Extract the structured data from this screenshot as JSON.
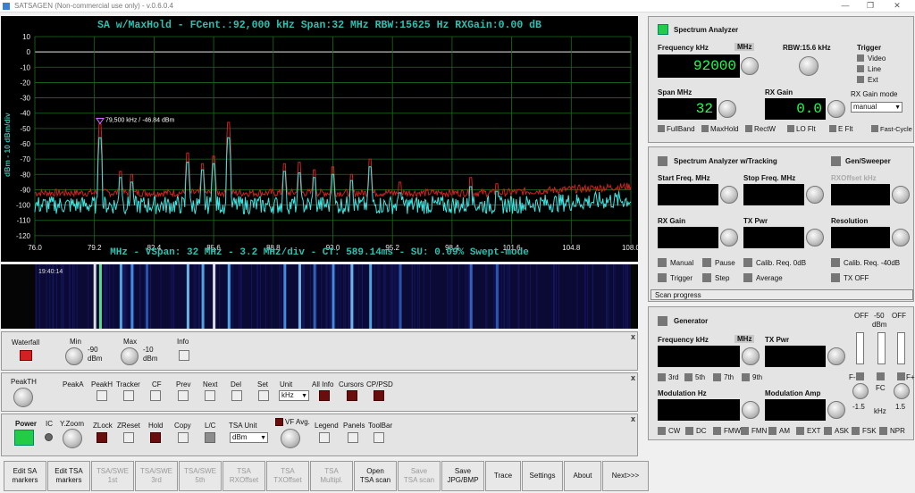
{
  "window": {
    "title": "SATSAGEN (Non-commercial use only) - v.0.6.0.4",
    "min": "—",
    "max": "❐",
    "close": "✕"
  },
  "spectrum": {
    "header": "SA w/MaxHold - FCent.:92,000 kHz Span:32 MHz RBW:15625 Hz RXGain:0.00 dB",
    "footer": "MHz - VSpan: 32 MHz - 3.2 MHz/div - CT: 589.14ms - SU: 0.09% Swept-mode",
    "ylabel": "dBm - 10 dBm/div",
    "marker": "79,500 kHz / -46.84 dBm",
    "colors": {
      "bg": "#000000",
      "grid": "#1d6b1d",
      "maxhold": "#cc2222",
      "trace": "#3ee6e0",
      "text": "#2fc0b0"
    }
  },
  "chart_data": {
    "type": "line",
    "xlabel": "MHz",
    "ylabel": "dBm - 10 dBm/div",
    "xlim": [
      76.0,
      108.0
    ],
    "ylim": [
      -130,
      10
    ],
    "x_ticks": [
      "76.0",
      "79.2",
      "82.4",
      "85.6",
      "88.8",
      "92.0",
      "95.2",
      "98.4",
      "101.6",
      "104.8",
      "108.0"
    ],
    "y_ticks": [
      "10",
      "0",
      "-10",
      "-20",
      "-30",
      "-40",
      "-50",
      "-60",
      "-70",
      "-80",
      "-90",
      "-100",
      "-110",
      "-120"
    ],
    "series": [
      {
        "name": "MaxHold",
        "noise_floor_dbm": -92,
        "peaks": [
          [
            79.5,
            -47
          ],
          [
            80.6,
            -78
          ],
          [
            81.2,
            -80
          ],
          [
            84.2,
            -66
          ],
          [
            85.0,
            -73
          ],
          [
            85.6,
            -68
          ],
          [
            86.4,
            -46
          ],
          [
            89.4,
            -73
          ],
          [
            90.2,
            -72
          ],
          [
            91.0,
            -77
          ],
          [
            92.0,
            -75
          ],
          [
            93.0,
            -80
          ],
          [
            94.0,
            -70
          ],
          [
            95.6,
            -85
          ],
          [
            99.4,
            -82
          ],
          [
            100.8,
            -86
          ]
        ]
      },
      {
        "name": "Trace",
        "noise_floor_dbm": -100,
        "peaks": [
          [
            79.5,
            -56
          ],
          [
            80.6,
            -82
          ],
          [
            81.2,
            -85
          ],
          [
            84.2,
            -72
          ],
          [
            85.0,
            -77
          ],
          [
            85.6,
            -73
          ],
          [
            86.4,
            -56
          ],
          [
            89.4,
            -78
          ],
          [
            90.2,
            -79
          ],
          [
            91.0,
            -82
          ],
          [
            92.0,
            -80
          ],
          [
            93.0,
            -84
          ],
          [
            94.0,
            -75
          ],
          [
            95.6,
            -92
          ],
          [
            99.4,
            -88
          ],
          [
            100.8,
            -91
          ]
        ]
      }
    ],
    "marker": {
      "x": 79.5,
      "y": -46.84
    }
  },
  "waterfall": {
    "timestamp": "19:40:14"
  },
  "wf_panel": {
    "waterfall": "Waterfall",
    "min_label": "Min",
    "min_val": "-90",
    "min_unit": "dBm",
    "max_label": "Max",
    "max_val": "-10",
    "max_unit": "dBm",
    "info": "Info"
  },
  "peak_panel": {
    "peakth": "PeakTH",
    "peaka": "PeakA",
    "peakh": "PeakH",
    "tracker": "Tracker",
    "cf": "CF",
    "prev": "Prev",
    "next": "Next",
    "del": "Del",
    "set": "Set",
    "unit": "Unit",
    "unit_val": "kHz",
    "allinfo": "All Info",
    "cursors": "Cursors",
    "cppsd": "CP/PSD"
  },
  "power_panel": {
    "power": "Power",
    "yzoom": "Y.Zoom",
    "ic": "IC",
    "zlock": "ZLock",
    "zreset": "ZReset",
    "hold": "Hold",
    "copy": "Copy",
    "lc": "L/C",
    "tsaunit": "TSA Unit",
    "tsaunit_val": "dBm",
    "vfavg": "VF Avg.",
    "legend": "Legend",
    "panels": "Panels",
    "toolbar": "ToolBar"
  },
  "sa": {
    "title": "Spectrum Analyzer",
    "freq_label": "Frequency kHz",
    "mhz": "MHz",
    "rbw": "RBW:15.6 kHz",
    "freq_val": "92000",
    "span_label": "Span MHz",
    "span_val": "32",
    "rxgain_label": "RX Gain",
    "rxgain_val": "0.0",
    "trigger": "Trigger",
    "video": "Video",
    "line": "Line",
    "ext": "Ext",
    "rxmode_label": "RX Gain mode",
    "rxmode_val": "manual",
    "fullband": "FullBand",
    "maxhold": "MaxHold",
    "rectw": "RectW",
    "loflt": "LO Flt",
    "eflt": "E Flt",
    "fastcycle": "Fast-Cycle"
  },
  "tsa": {
    "title": "Spectrum Analyzer w/Tracking",
    "gen_title": "Gen/Sweeper",
    "start": "Start Freq. MHz",
    "stop": "Stop Freq. MHz",
    "rxoffset": "RXOffset kHz",
    "rxgain": "RX Gain",
    "txpwr": "TX Pwr",
    "resolution": "Resolution",
    "manual": "Manual",
    "pause": "Pause",
    "calib0": "Calib. Req. 0dB",
    "calib40": "Calib. Req. -40dB",
    "trigger": "Trigger",
    "step": "Step",
    "average": "Average",
    "txoff": "TX OFF",
    "scan": "Scan progress"
  },
  "gen": {
    "title": "Generator",
    "freq": "Frequency kHz",
    "mhz": "MHz",
    "txpwr": "TX Pwr",
    "h3": "3rd",
    "h5": "5th",
    "h7": "7th",
    "h9": "9th",
    "off1": "OFF",
    "m50": "-50",
    "dbm": "dBm",
    "off2": "OFF",
    "fminus": "F-",
    "fc": "FC",
    "fplus": "F+",
    "m15": "-1.5",
    "khz": "kHz",
    "p15": "1.5",
    "modhz": "Modulation Hz",
    "modamp": "Modulation Amp",
    "cw": "CW",
    "dc": "DC",
    "fmw": "FMW",
    "fmn": "FMN",
    "am": "AM",
    "ext": "EXT",
    "ask": "ASK",
    "fsk": "FSK",
    "npr": "NPR"
  },
  "bottom": [
    "Edit SA\nmarkers",
    "Edit TSA\nmarkers",
    "TSA/SWE\n1st",
    "TSA/SWE\n3rd",
    "TSA/SWE\n5th",
    "TSA\nRXOffset",
    "TSA\nTXOffset",
    "TSA\nMultipl.",
    "Open\nTSA scan",
    "Save\nTSA scan",
    "Save\nJPG/BMP",
    "Trace",
    "Settings",
    "About",
    "Next>>>"
  ],
  "bottom_disabled": [
    false,
    false,
    true,
    true,
    true,
    true,
    true,
    true,
    false,
    true,
    false,
    false,
    false,
    false,
    false
  ]
}
